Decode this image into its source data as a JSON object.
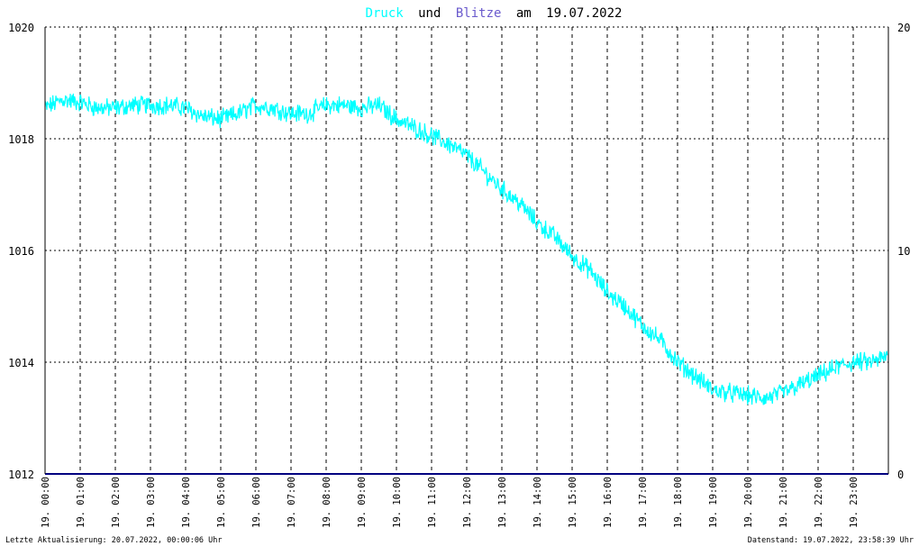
{
  "title": {
    "series1_word": "Druck",
    "connector": "und",
    "series2_word": "Blitze",
    "date_prefix": "am",
    "date": "19.07.2022"
  },
  "footer": {
    "left": "Letzte Aktualisierung: 20.07.2022, 00:00:06 Uhr",
    "right": "Datenstand: 19.07.2022, 23:58:39 Uhr"
  },
  "colors": {
    "druck": "#00ffff",
    "blitze": "#6a5acd",
    "baseline": "#000080",
    "grid": "#000000",
    "text": "#000000",
    "title_text": "#000000"
  },
  "chart_data": {
    "type": "line",
    "grid": true,
    "x_unit": "hour of day",
    "xlim": [
      0,
      24
    ],
    "ylim_left": [
      1012,
      1020
    ],
    "yticks_left": [
      "1012",
      "1014",
      "1016",
      "1018",
      "1020"
    ],
    "ylim_right": [
      0,
      20
    ],
    "yticks_right": [
      "0",
      "10",
      "20"
    ],
    "xtick_labels": [
      "19. 00:00",
      "19. 01:00",
      "19. 02:00",
      "19. 03:00",
      "19. 04:00",
      "19. 05:00",
      "19. 06:00",
      "19. 07:00",
      "19. 08:00",
      "19. 09:00",
      "19. 10:00",
      "19. 11:00",
      "19. 12:00",
      "19. 13:00",
      "19. 14:00",
      "19. 15:00",
      "19. 16:00",
      "19. 17:00",
      "19. 18:00",
      "19. 19:00",
      "19. 20:00",
      "19. 21:00",
      "19. 22:00",
      "19. 23:00"
    ],
    "series": [
      {
        "name": "Druck",
        "axis": "left",
        "x": [
          0,
          0.5,
          1,
          1.5,
          2,
          2.5,
          3,
          3.5,
          4,
          4.5,
          5,
          5.5,
          6,
          6.5,
          7,
          7.5,
          8,
          8.5,
          9,
          9.5,
          10,
          10.5,
          11,
          11.5,
          12,
          12.5,
          13,
          13.5,
          14,
          14.5,
          15,
          15.5,
          16,
          16.5,
          17,
          17.5,
          18,
          18.5,
          19,
          19.5,
          20,
          20.5,
          21,
          21.5,
          22,
          22.5,
          23,
          23.5,
          23.97
        ],
        "values": [
          1018.55,
          1018.7,
          1018.65,
          1018.55,
          1018.55,
          1018.6,
          1018.6,
          1018.6,
          1018.55,
          1018.4,
          1018.35,
          1018.45,
          1018.6,
          1018.55,
          1018.45,
          1018.45,
          1018.6,
          1018.6,
          1018.55,
          1018.6,
          1018.35,
          1018.2,
          1018.05,
          1017.9,
          1017.7,
          1017.4,
          1017.1,
          1016.85,
          1016.5,
          1016.25,
          1015.9,
          1015.65,
          1015.25,
          1015.0,
          1014.65,
          1014.4,
          1014.0,
          1013.75,
          1013.5,
          1013.45,
          1013.4,
          1013.35,
          1013.45,
          1013.6,
          1013.75,
          1013.9,
          1014.0,
          1014.0,
          1014.1
        ]
      },
      {
        "name": "Blitze",
        "axis": "right",
        "x": [
          0,
          24
        ],
        "values": [
          0,
          0
        ]
      }
    ]
  }
}
